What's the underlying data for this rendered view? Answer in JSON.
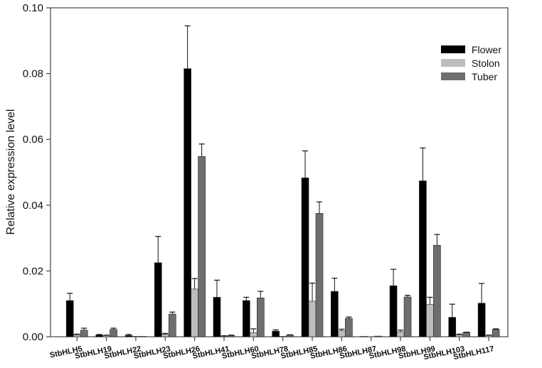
{
  "chart_data": {
    "type": "bar",
    "title": "",
    "xlabel": "",
    "ylabel": "Relative expression level",
    "ylim": [
      0,
      0.1
    ],
    "yticks": [
      "0.00",
      "0.02",
      "0.04",
      "0.06",
      "0.08",
      "0.10"
    ],
    "grid": false,
    "legend_position": "upper right",
    "categories": [
      "StbHLH5",
      "StbHLH19",
      "StbHLH22",
      "StbHLH23",
      "StbHLH26",
      "StbHLH41",
      "StbHLH60",
      "StbHLH78",
      "StbHLH85",
      "StbHLH86",
      "StbHLH87",
      "StbHLH98",
      "StbHLH99",
      "StbHLH103",
      "StbHLH117"
    ],
    "series": [
      {
        "name": "Flower",
        "color": "#000000",
        "values": [
          0.011,
          0.0005,
          0.0004,
          0.0225,
          0.0815,
          0.012,
          0.011,
          0.0017,
          0.0483,
          0.0138,
          0.0001,
          0.0155,
          0.0474,
          0.0059,
          0.0102
        ],
        "errors": [
          0.0022,
          0.0002,
          0.0003,
          0.008,
          0.013,
          0.0052,
          0.001,
          0.0004,
          0.0082,
          0.004,
          0.0,
          0.005,
          0.01,
          0.004,
          0.006
        ]
      },
      {
        "name": "Stolon",
        "color": "#bdbdbd",
        "values": [
          0.0006,
          0.0004,
          0.0001,
          0.0008,
          0.0145,
          0.0002,
          0.0012,
          0.0001,
          0.0108,
          0.0018,
          0.0,
          0.0015,
          0.0098,
          0.0006,
          0.0004
        ],
        "errors": [
          0.0002,
          0.0001,
          0.0,
          0.0002,
          0.0032,
          0.0001,
          0.0012,
          0.0,
          0.0055,
          0.0005,
          0.0,
          0.0005,
          0.0022,
          0.0002,
          0.0001
        ],
        "error_style": "open"
      },
      {
        "name": "Tuber",
        "color": "#6e6e6e",
        "values": [
          0.002,
          0.0022,
          0.0001,
          0.0069,
          0.0548,
          0.0004,
          0.0118,
          0.0005,
          0.0375,
          0.0056,
          0.0002,
          0.0121,
          0.0278,
          0.0013,
          0.0022
        ],
        "errors": [
          0.0006,
          0.0004,
          0.0,
          0.0006,
          0.0038,
          0.0001,
          0.002,
          0.0001,
          0.0035,
          0.0004,
          0.0,
          0.0005,
          0.0033,
          0.0001,
          0.0002
        ]
      }
    ]
  }
}
